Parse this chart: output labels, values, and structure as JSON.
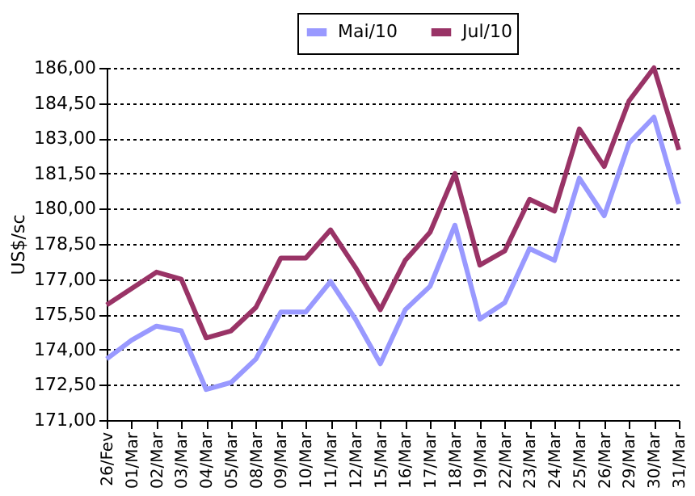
{
  "chart_data": {
    "type": "line",
    "ylabel": "US$/sc",
    "categories": [
      "26/Fev",
      "01/Mar",
      "02/Mar",
      "03/Mar",
      "04/Mar",
      "05/Mar",
      "08/Mar",
      "09/Mar",
      "10/Mar",
      "11/Mar",
      "12/Mar",
      "15/Mar",
      "16/Mar",
      "17/Mar",
      "18/Mar",
      "19/Mar",
      "22/Mar",
      "23/Mar",
      "24/Mar",
      "25/Mar",
      "26/Mar",
      "29/Mar",
      "30/Mar",
      "31/Mar"
    ],
    "series": [
      {
        "name": "Mai/10",
        "color": "#9999ff",
        "values": [
          173.6,
          174.4,
          175.0,
          174.8,
          172.3,
          172.6,
          173.6,
          175.6,
          175.6,
          176.9,
          175.3,
          173.4,
          175.7,
          176.7,
          179.3,
          175.3,
          176.0,
          178.3,
          177.8,
          181.3,
          179.7,
          182.8,
          183.9,
          180.2
        ]
      },
      {
        "name": "Jul/10",
        "color": "#993366",
        "values": [
          175.9,
          176.6,
          177.3,
          177.0,
          174.5,
          174.8,
          175.8,
          177.9,
          177.9,
          179.1,
          177.5,
          175.7,
          177.8,
          179.0,
          181.5,
          177.6,
          178.2,
          180.4,
          179.9,
          183.4,
          181.8,
          184.6,
          186.0,
          182.5
        ]
      }
    ],
    "ylim": [
      171,
      186
    ],
    "yticks": [
      {
        "value": 171,
        "label": "171,00"
      },
      {
        "value": 172.5,
        "label": "172,50"
      },
      {
        "value": 174,
        "label": "174,00"
      },
      {
        "value": 175.5,
        "label": "175,50"
      },
      {
        "value": 177,
        "label": "177,00"
      },
      {
        "value": 178.5,
        "label": "178,50"
      },
      {
        "value": 180,
        "label": "180,00"
      },
      {
        "value": 181.5,
        "label": "181,50"
      },
      {
        "value": 183,
        "label": "183,00"
      },
      {
        "value": 184.5,
        "label": "184,50"
      },
      {
        "value": 186,
        "label": "186,00"
      }
    ],
    "grid": "y",
    "legend": "top",
    "line_style": "solid",
    "marker": "none"
  }
}
